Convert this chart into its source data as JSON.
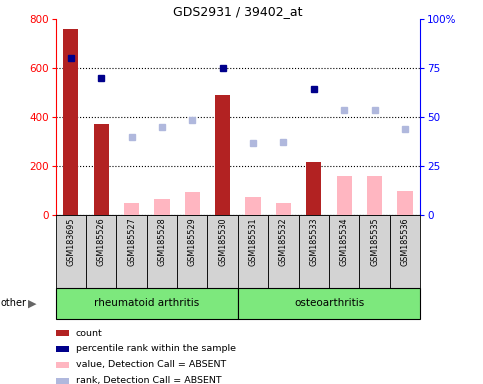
{
  "title": "GDS2931 / 39402_at",
  "samples": [
    "GSM183695",
    "GSM185526",
    "GSM185527",
    "GSM185528",
    "GSM185529",
    "GSM185530",
    "GSM185531",
    "GSM185532",
    "GSM185533",
    "GSM185534",
    "GSM185535",
    "GSM185536"
  ],
  "count_values": [
    760,
    370,
    0,
    0,
    0,
    490,
    0,
    0,
    215,
    0,
    0,
    0
  ],
  "percentile_rank_left": [
    640,
    560,
    null,
    null,
    null,
    600,
    null,
    null,
    515,
    null,
    null,
    null
  ],
  "value_absent": [
    null,
    null,
    50,
    65,
    95,
    null,
    75,
    50,
    null,
    160,
    160,
    100
  ],
  "rank_absent_left": [
    null,
    null,
    320,
    360,
    390,
    null,
    295,
    300,
    null,
    430,
    430,
    350
  ],
  "groups": [
    {
      "label": "rheumatoid arthritis",
      "start": 0,
      "end": 6
    },
    {
      "label": "osteoarthritis",
      "start": 6,
      "end": 12
    }
  ],
  "ylim_left": [
    0,
    800
  ],
  "ylim_right": [
    0,
    100
  ],
  "yticks_left": [
    0,
    200,
    400,
    600,
    800
  ],
  "yticks_right": [
    0,
    25,
    50,
    75,
    100
  ],
  "yticklabels_right": [
    "0",
    "25",
    "50",
    "75",
    "100%"
  ],
  "bar_color_count": "#b22222",
  "bar_color_value_absent": "#ffb6c1",
  "dot_color_rank": "#00008b",
  "dot_color_rank_absent": "#b0b8dd",
  "group_bg_color": "#7de87d",
  "sample_bg_color": "#d3d3d3",
  "legend_items": [
    {
      "color": "#b22222",
      "label": "count"
    },
    {
      "color": "#00008b",
      "label": "percentile rank within the sample"
    },
    {
      "color": "#ffb6c1",
      "label": "value, Detection Call = ABSENT"
    },
    {
      "color": "#b0b8dd",
      "label": "rank, Detection Call = ABSENT"
    }
  ],
  "bar_width": 0.5,
  "marker_size": 5
}
